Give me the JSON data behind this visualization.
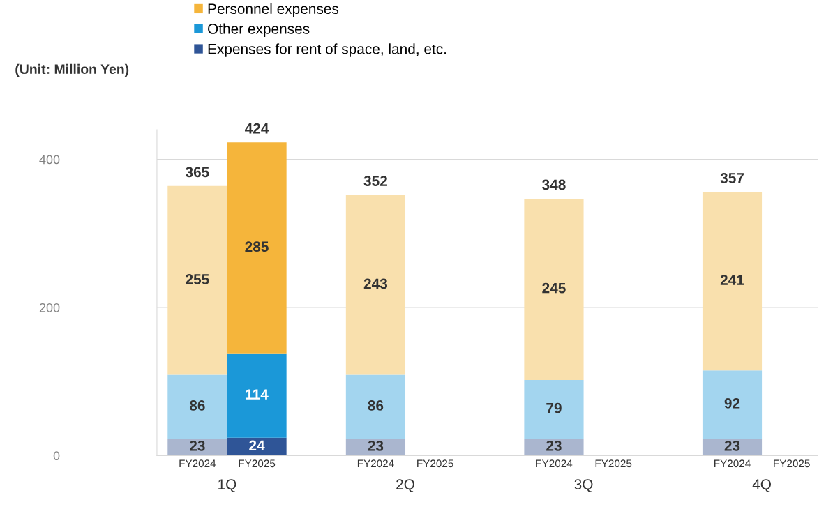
{
  "chart_data": {
    "type": "bar",
    "stacked": true,
    "ylabel": "(Unit: Million Yen)",
    "categories": [
      "FY2024",
      "FY2025",
      "FY2024",
      "FY2025",
      "FY2024",
      "FY2025",
      "FY2024",
      "FY2025"
    ],
    "annotations": [
      "1Q",
      "2Q",
      "3Q",
      "4Q"
    ],
    "series": [
      {
        "name": "Expenses for rent of space, land, etc.",
        "color": "#2f5597",
        "colors": [
          "#aab6cf",
          "#2f5597",
          "#aab6cf",
          "#2f5597",
          "#aab6cf",
          "#2f5597",
          "#aab6cf",
          "#2f5597"
        ],
        "values": [
          23,
          24,
          23,
          null,
          23,
          null,
          23,
          null
        ]
      },
      {
        "name": "Other expenses",
        "color": "#1b98d8",
        "colors": [
          "#a3d5ef",
          "#1b98d8",
          "#a3d5ef",
          "#1b98d8",
          "#a3d5ef",
          "#1b98d8",
          "#a3d5ef",
          "#1b98d8"
        ],
        "values": [
          86,
          114,
          86,
          null,
          79,
          null,
          92,
          null
        ]
      },
      {
        "name": "Personnel expenses",
        "color": "#f5b53b",
        "colors": [
          "#f9e0ad",
          "#f5b53b",
          "#f9e0ad",
          "#f5b53b",
          "#f9e0ad",
          "#f5b53b",
          "#f9e0ad",
          "#f5b53b"
        ],
        "values": [
          255,
          285,
          243,
          null,
          245,
          null,
          241,
          null
        ]
      }
    ],
    "totals": [
      "365",
      "424",
      "352",
      null,
      "348",
      null,
      "357",
      null
    ],
    "data_labels": true,
    "ylim": [
      0,
      440
    ],
    "yticks": [
      0,
      200,
      400
    ],
    "grid": "y",
    "legend": "top left"
  }
}
